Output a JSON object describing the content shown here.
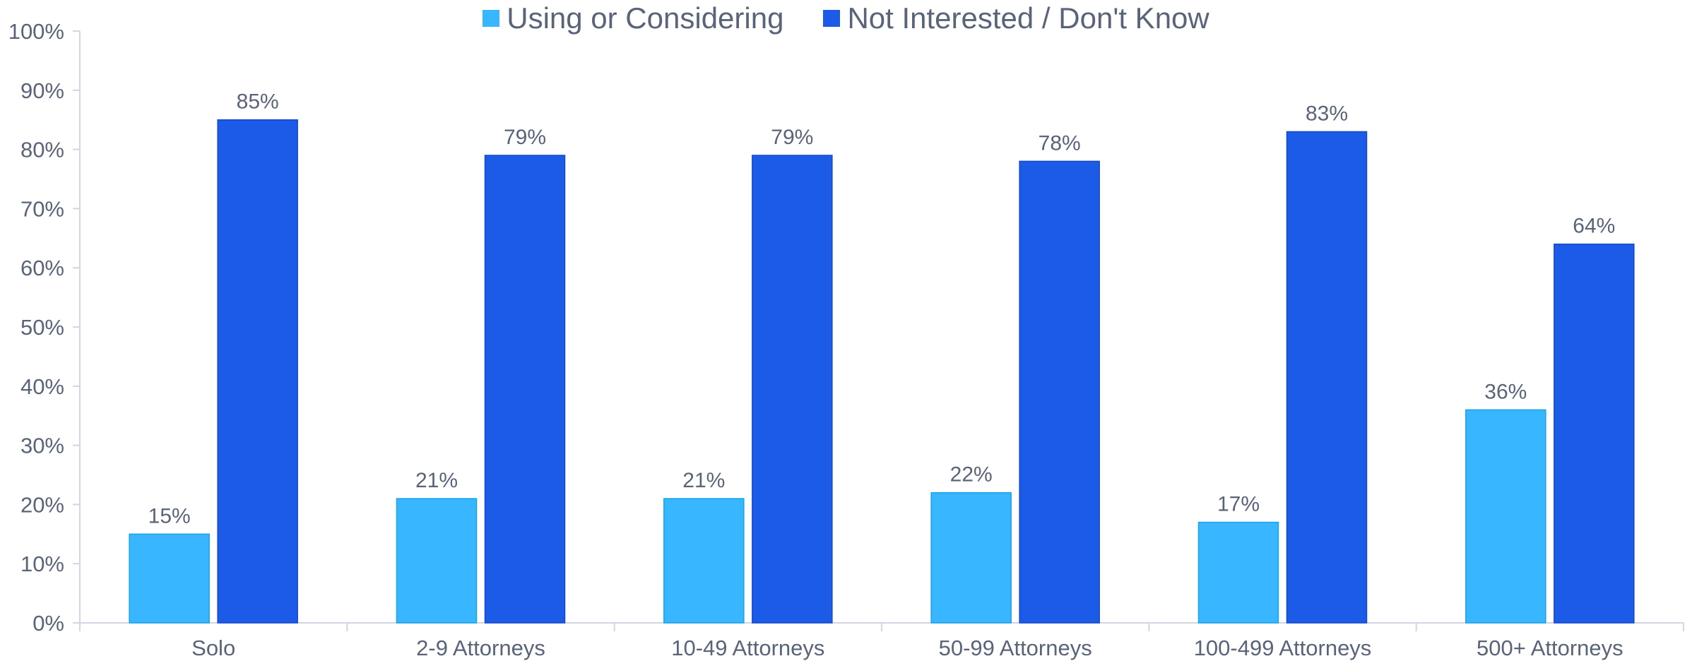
{
  "chart_data": {
    "type": "bar",
    "title": "",
    "xlabel": "",
    "ylabel": "",
    "ylim": [
      0,
      100
    ],
    "y_ticks": [
      "0%",
      "10%",
      "20%",
      "30%",
      "40%",
      "50%",
      "60%",
      "70%",
      "80%",
      "90%",
      "100%"
    ],
    "y_tick_values": [
      0,
      10,
      20,
      30,
      40,
      50,
      60,
      70,
      80,
      90,
      100
    ],
    "categories": [
      "Solo",
      "2-9 Attorneys",
      "10-49 Attorneys",
      "50-99 Attorneys",
      "100-499 Attorneys",
      "500+ Attorneys"
    ],
    "series": [
      {
        "name": "Using or Considering",
        "color": "#38B6FF",
        "values": [
          15,
          21,
          21,
          22,
          17,
          36
        ],
        "labels": [
          "15%",
          "21%",
          "21%",
          "22%",
          "17%",
          "36%"
        ]
      },
      {
        "name": "Not Interested / Don't Know",
        "color": "#1C5BE8",
        "values": [
          85,
          79,
          79,
          78,
          83,
          64
        ],
        "labels": [
          "85%",
          "79%",
          "79%",
          "78%",
          "83%",
          "64%"
        ]
      }
    ],
    "legend_position": "top-center",
    "grid": false
  }
}
